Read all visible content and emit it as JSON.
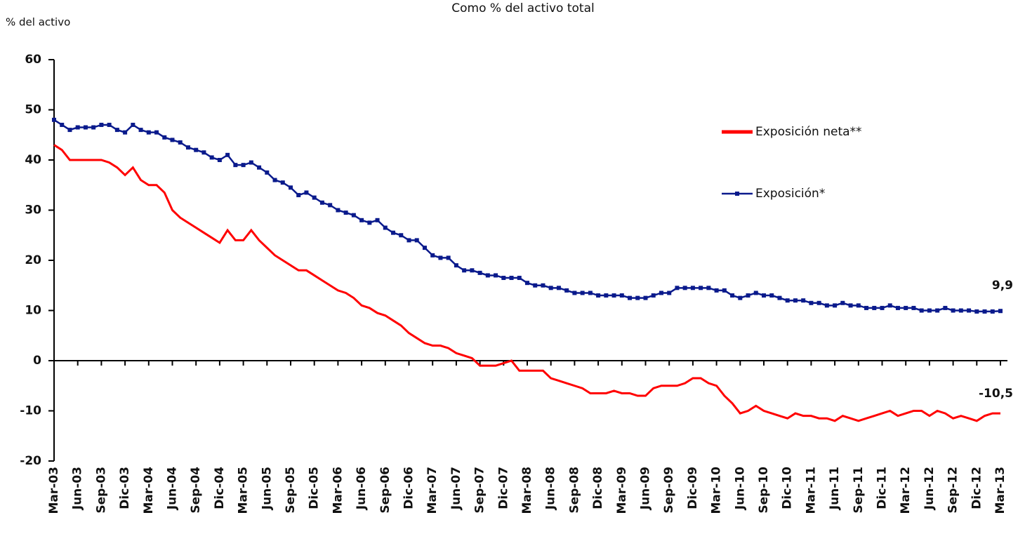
{
  "chart_data": {
    "type": "line",
    "title": "Como % del activo total",
    "y_label": "% del activo",
    "categories": [
      "Mar-03",
      null,
      null,
      "Jun-03",
      null,
      null,
      "Sep-03",
      null,
      null,
      "Dic-03",
      null,
      null,
      "Mar-04",
      null,
      null,
      "Jun-04",
      null,
      null,
      "Sep-04",
      null,
      null,
      "Dic-04",
      null,
      null,
      "Mar-05",
      null,
      null,
      "Jun-05",
      null,
      null,
      "Sep-05",
      null,
      null,
      "Dic-05",
      null,
      null,
      "Mar-06",
      null,
      null,
      "Jun-06",
      null,
      null,
      "Sep-06",
      null,
      null,
      "Dic-06",
      null,
      null,
      "Mar-07",
      null,
      null,
      "Jun-07",
      null,
      null,
      "Sep-07",
      null,
      null,
      "Dic-07",
      null,
      null,
      "Mar-08",
      null,
      null,
      "Jun-08",
      null,
      null,
      "Sep-08",
      null,
      null,
      "Dic-08",
      null,
      null,
      "Mar-09",
      null,
      null,
      "Jun-09",
      null,
      null,
      "Sep-09",
      null,
      null,
      "Dic-09",
      null,
      null,
      "Mar-10",
      null,
      null,
      "Jun-10",
      null,
      null,
      "Sep-10",
      null,
      null,
      "Dic-10",
      null,
      null,
      "Mar-11",
      null,
      null,
      "Jun-11",
      null,
      null,
      "Sep-11",
      null,
      null,
      "Dic-11",
      null,
      null,
      "Mar-12",
      null,
      null,
      "Jun-12",
      null,
      null,
      "Sep-12",
      null,
      null,
      "Dic-12",
      null,
      null,
      "Mar-13"
    ],
    "series": [
      {
        "name": "Exposición neta**",
        "color": "#ff0000",
        "marker": false,
        "end_label": "-10,5",
        "values": [
          43,
          42,
          40,
          40,
          40,
          40,
          40,
          39.5,
          38.5,
          37,
          38.5,
          36,
          35,
          35,
          33.5,
          30,
          28.5,
          27.5,
          26.5,
          25.5,
          24.5,
          23.5,
          26,
          24,
          24,
          26,
          24,
          22.5,
          21,
          20,
          19,
          18,
          18,
          17,
          16,
          15,
          14,
          13.5,
          12.5,
          11,
          10.5,
          9.5,
          9,
          8,
          7,
          5.5,
          4.5,
          3.5,
          3,
          3,
          2.5,
          1.5,
          1,
          0.5,
          -1,
          -1,
          -1,
          -0.5,
          0,
          -2,
          -2,
          -2,
          -2,
          -3.5,
          -4,
          -4.5,
          -5,
          -5.5,
          -6.5,
          -6.5,
          -6.5,
          -6,
          -6.5,
          -6.5,
          -7,
          -7,
          -5.5,
          -5,
          -5,
          -5,
          -4.5,
          -3.5,
          -3.5,
          -4.5,
          -5,
          -7,
          -8.5,
          -10.5,
          -10,
          -9,
          -10,
          -10.5,
          -11,
          -11.5,
          -10.5,
          -11,
          -11,
          -11.5,
          -11.5,
          -12,
          -11,
          -11.5,
          -12,
          -11.5,
          -11,
          -10.5,
          -10,
          -11,
          -10.5,
          -10,
          -10,
          -11,
          -10,
          -10.5,
          -11.5,
          -11,
          -11.5,
          -12,
          -11,
          -10.5,
          -10.5
        ]
      },
      {
        "name": "Exposición*",
        "color": "#0a1a8c",
        "marker": true,
        "end_label": "9,9",
        "values": [
          48,
          47,
          46,
          46.5,
          46.5,
          46.5,
          47,
          47,
          46,
          45.5,
          47,
          46,
          45.5,
          45.5,
          44.5,
          44,
          43.5,
          42.5,
          42,
          41.5,
          40.5,
          40,
          41,
          39,
          39,
          39.5,
          38.5,
          37.5,
          36,
          35.5,
          34.5,
          33,
          33.5,
          32.5,
          31.5,
          31,
          30,
          29.5,
          29,
          28,
          27.5,
          28,
          26.5,
          25.5,
          25,
          24,
          24,
          22.5,
          21,
          20.5,
          20.5,
          19,
          18,
          18,
          17.5,
          17,
          17,
          16.5,
          16.5,
          16.5,
          15.5,
          15,
          15,
          14.5,
          14.5,
          14,
          13.5,
          13.5,
          13.5,
          13,
          13,
          13,
          13,
          12.5,
          12.5,
          12.5,
          13,
          13.5,
          13.5,
          14.5,
          14.5,
          14.5,
          14.5,
          14.5,
          14,
          14,
          13,
          12.5,
          13,
          13.5,
          13,
          13,
          12.5,
          12,
          12,
          12,
          11.5,
          11.5,
          11,
          11,
          11.5,
          11,
          11,
          10.5,
          10.5,
          10.5,
          11,
          10.5,
          10.5,
          10.5,
          10,
          10,
          10,
          10.5,
          10,
          10,
          10,
          9.8,
          9.8,
          9.8,
          9.9
        ]
      }
    ],
    "ylim": [
      -20,
      60
    ],
    "yticks": [
      -20,
      -10,
      0,
      10,
      20,
      30,
      40,
      50,
      60
    ],
    "grid": false
  }
}
